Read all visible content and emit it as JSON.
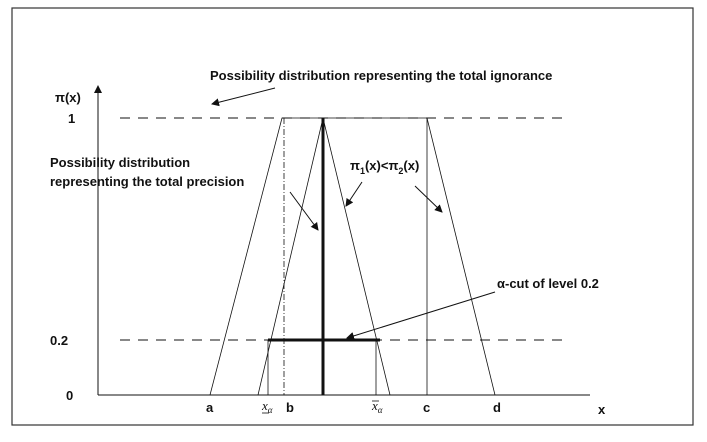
{
  "figure": {
    "ignorance_label": "Possibility distribution representing the total ignorance",
    "y_axis_label": "π(x)",
    "x_axis_label": "x",
    "level_1": "1",
    "level_02": "0.2",
    "level_0": "0",
    "precision_label": [
      "Possibility distribution",
      "representing the total precision"
    ],
    "relation_label": [
      "π",
      "1",
      "(x)<π",
      "2",
      "(x)"
    ],
    "alpha_cut_label": "α-cut  of level 0.2",
    "points": {
      "a": "a",
      "b": "b",
      "c": "c",
      "d": "d"
    },
    "x_lower": {
      "base": "x",
      "sub": "α"
    },
    "x_upper": {
      "base": "x",
      "sub": "α"
    }
  }
}
